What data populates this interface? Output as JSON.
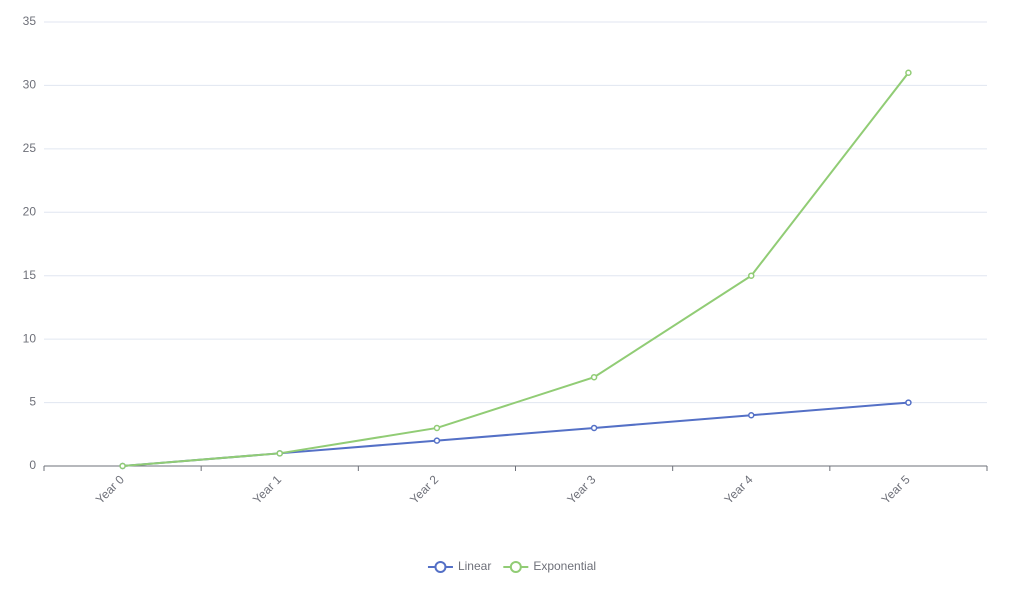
{
  "chart_data": {
    "type": "line",
    "categories": [
      "Year 0",
      "Year 1",
      "Year 2",
      "Year 3",
      "Year 4",
      "Year 5"
    ],
    "series": [
      {
        "name": "Linear",
        "color": "#5470c6",
        "values": [
          0,
          1,
          2,
          3,
          4,
          5
        ]
      },
      {
        "name": "Exponential",
        "color": "#91cc75",
        "values": [
          0,
          1,
          3,
          7,
          15,
          31
        ]
      }
    ],
    "ylim": [
      0,
      35
    ],
    "yticks": [
      0,
      5,
      10,
      15,
      20,
      25,
      30,
      35
    ],
    "grid": true,
    "legend": "bottom"
  }
}
